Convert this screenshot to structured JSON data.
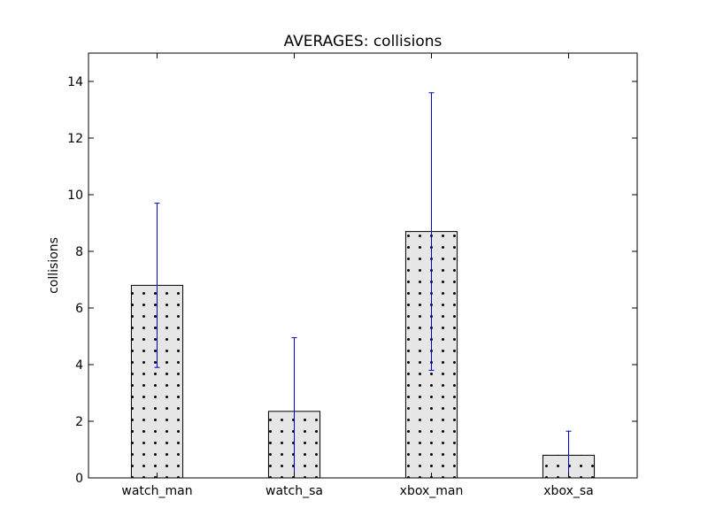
{
  "chart_data": {
    "type": "bar",
    "title": "AVERAGES: collisions",
    "xlabel": "",
    "ylabel": "collisions",
    "categories": [
      "watch_man",
      "watch_sa",
      "xbox_man",
      "xbox_sa"
    ],
    "values": [
      6.8,
      2.35,
      8.7,
      0.8
    ],
    "error_low": [
      3.9,
      0.0,
      3.8,
      0.0
    ],
    "error_high": [
      9.7,
      4.95,
      13.6,
      1.65
    ],
    "ylim": [
      0,
      15
    ],
    "yticks": [
      "0",
      "2",
      "4",
      "6",
      "8",
      "10",
      "12",
      "14"
    ],
    "grid": false,
    "legend": "none",
    "bar_fill": "#e6e6e6",
    "bar_hatch": "dots",
    "errorbar_color": "#0000cc"
  }
}
